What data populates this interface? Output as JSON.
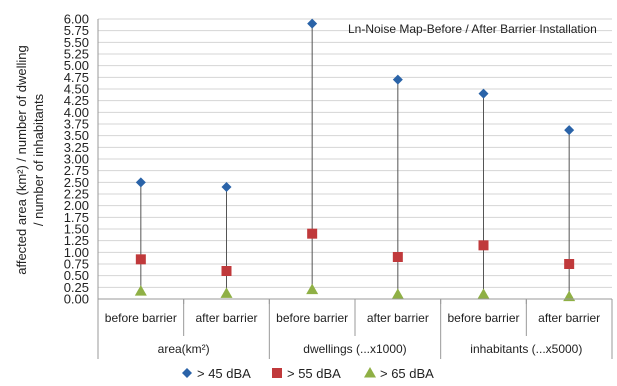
{
  "chart_data": {
    "type": "scatter",
    "title": "Ln-Noise Map-Before / After Barrier Installation",
    "ylabel_lines": [
      "affected area (km²) / number of dwelling",
      "/ number  of inhabitants"
    ],
    "ylim": [
      0,
      6
    ],
    "yticks": [
      "0.00",
      "0.25",
      "0.50",
      "0.75",
      "1.00",
      "1.25",
      "1.50",
      "1.75",
      "2.00",
      "2.25",
      "2.50",
      "2.75",
      "3.00",
      "3.25",
      "3.50",
      "3.75",
      "4.00",
      "4.25",
      "4.50",
      "4.75",
      "5.00",
      "5.25",
      "5.50",
      "5.75",
      "6.00"
    ],
    "categories": [
      "before barrier",
      "after barrier",
      "before barrier",
      "after barrier",
      "before barrier",
      "after barrier"
    ],
    "groups": [
      "area(km²)",
      "dwellings (...x1000)",
      "inhabitants (...x5000)"
    ],
    "grid": true,
    "legend_position": "bottom",
    "series": [
      {
        "name": "> 45 dBA",
        "color": "#2a63a8",
        "marker": "diamond",
        "values": [
          2.5,
          2.4,
          5.9,
          4.7,
          4.4,
          3.62
        ]
      },
      {
        "name": "> 55 dBA",
        "color": "#c0393b",
        "marker": "square",
        "values": [
          0.85,
          0.6,
          1.4,
          0.9,
          1.15,
          0.75
        ]
      },
      {
        "name": "> 65 dBA",
        "color": "#8fb045",
        "marker": "triangle",
        "values": [
          0.17,
          0.12,
          0.2,
          0.1,
          0.1,
          0.05
        ]
      }
    ]
  }
}
